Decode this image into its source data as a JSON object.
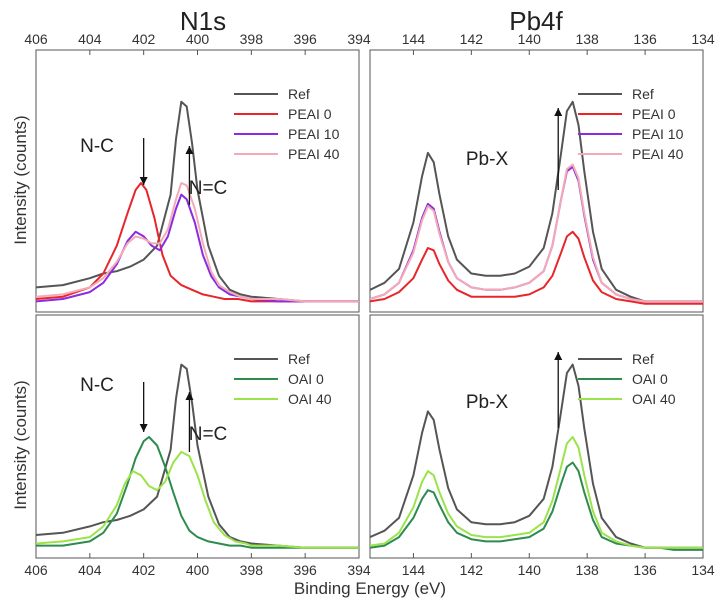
{
  "figure": {
    "column_titles": [
      "N1s",
      "Pb4f"
    ],
    "xlabel": "Binding Energy (eV)",
    "ylabel": "Intensity (counts)"
  },
  "chart_data": [
    {
      "type": "line",
      "panel": "top-left",
      "xlim": [
        406,
        394
      ],
      "x_reversed": true,
      "xticks": [
        406,
        404,
        402,
        400,
        398,
        396,
        394
      ],
      "ylim": [
        0,
        1
      ],
      "grid": false,
      "legend_position": "top-right",
      "annotations": [
        {
          "text": "N-C",
          "arrow": "down",
          "x": 402.0
        },
        {
          "text": "N=C",
          "arrow": "up",
          "x": 400.3
        }
      ],
      "series": [
        {
          "name": "Ref",
          "color": "#555555",
          "x": [
            406,
            405,
            404,
            403.5,
            403,
            402.5,
            402,
            401.5,
            401,
            400.8,
            400.6,
            400.4,
            400.2,
            400,
            399.6,
            399.2,
            398.8,
            398.4,
            398,
            397,
            396,
            395,
            394
          ],
          "y": [
            0.08,
            0.09,
            0.12,
            0.14,
            0.15,
            0.17,
            0.2,
            0.26,
            0.48,
            0.72,
            0.88,
            0.86,
            0.7,
            0.5,
            0.26,
            0.13,
            0.07,
            0.05,
            0.04,
            0.03,
            0.02,
            0.02,
            0.02
          ]
        },
        {
          "name": "PEAI 0",
          "color": "#e8262a",
          "x": [
            406,
            405,
            404,
            403.5,
            403,
            402.6,
            402.3,
            402.1,
            401.9,
            401.6,
            401.3,
            401,
            400.6,
            400.2,
            399.8,
            399.4,
            399,
            398.5,
            398,
            397,
            396,
            395,
            394
          ],
          "y": [
            0.03,
            0.04,
            0.08,
            0.14,
            0.26,
            0.4,
            0.5,
            0.53,
            0.5,
            0.38,
            0.22,
            0.13,
            0.09,
            0.07,
            0.05,
            0.04,
            0.03,
            0.03,
            0.02,
            0.02,
            0.02,
            0.02,
            0.02
          ]
        },
        {
          "name": "PEAI 10",
          "color": "#8a2be2",
          "x": [
            406,
            405,
            404,
            403.5,
            403,
            402.6,
            402.3,
            402,
            401.7,
            401.4,
            401.1,
            400.8,
            400.6,
            400.4,
            400.1,
            399.8,
            399.5,
            399.2,
            398.8,
            398.4,
            398,
            397,
            396,
            395,
            394
          ],
          "y": [
            0.02,
            0.03,
            0.06,
            0.1,
            0.18,
            0.28,
            0.32,
            0.3,
            0.26,
            0.24,
            0.3,
            0.42,
            0.48,
            0.46,
            0.36,
            0.22,
            0.13,
            0.08,
            0.05,
            0.04,
            0.03,
            0.02,
            0.02,
            0.02,
            0.02
          ]
        },
        {
          "name": "PEAI 40",
          "color": "#f4aab5",
          "x": [
            406,
            405,
            404,
            403.5,
            403,
            402.6,
            402.3,
            402,
            401.7,
            401.4,
            401.1,
            400.8,
            400.6,
            400.4,
            400.1,
            399.8,
            399.5,
            399.2,
            398.8,
            398.4,
            398,
            397,
            396,
            395,
            394
          ],
          "y": [
            0.04,
            0.05,
            0.08,
            0.12,
            0.19,
            0.27,
            0.3,
            0.29,
            0.27,
            0.27,
            0.33,
            0.46,
            0.53,
            0.52,
            0.42,
            0.27,
            0.15,
            0.09,
            0.06,
            0.04,
            0.03,
            0.03,
            0.02,
            0.02,
            0.02
          ]
        }
      ]
    },
    {
      "type": "line",
      "panel": "top-right",
      "xlim": [
        145.5,
        134
      ],
      "x_reversed": true,
      "xticks": [
        144,
        142,
        140,
        138,
        136,
        134
      ],
      "ylim": [
        0,
        1
      ],
      "grid": false,
      "legend_position": "top-right",
      "annotations": [
        {
          "text": "Pb-X",
          "arrow": "up",
          "x": 139.0
        }
      ],
      "series": [
        {
          "name": "Ref",
          "color": "#555555",
          "x": [
            145.5,
            145,
            144.5,
            144,
            143.7,
            143.5,
            143.3,
            143.1,
            142.8,
            142.5,
            142,
            141.5,
            141,
            140.5,
            140,
            139.5,
            139.2,
            138.9,
            138.7,
            138.5,
            138.3,
            138.1,
            137.8,
            137.5,
            137,
            136.5,
            136,
            135.5,
            135,
            134.5,
            134
          ],
          "y": [
            0.07,
            0.1,
            0.16,
            0.36,
            0.56,
            0.66,
            0.62,
            0.48,
            0.3,
            0.2,
            0.14,
            0.13,
            0.13,
            0.14,
            0.17,
            0.25,
            0.4,
            0.66,
            0.84,
            0.88,
            0.78,
            0.58,
            0.32,
            0.16,
            0.07,
            0.04,
            0.02,
            0.02,
            0.02,
            0.02,
            0.02
          ]
        },
        {
          "name": "PEAI 0",
          "color": "#e8262a",
          "x": [
            145.5,
            145,
            144.5,
            144,
            143.7,
            143.5,
            143.3,
            143.1,
            142.8,
            142.5,
            142,
            141.5,
            141,
            140.5,
            140,
            139.5,
            139.2,
            138.9,
            138.7,
            138.5,
            138.3,
            138.1,
            137.8,
            137.5,
            137,
            136.5,
            136,
            135.5,
            135,
            134.5,
            134
          ],
          "y": [
            0.02,
            0.03,
            0.06,
            0.12,
            0.2,
            0.25,
            0.24,
            0.18,
            0.11,
            0.07,
            0.04,
            0.04,
            0.04,
            0.04,
            0.05,
            0.08,
            0.13,
            0.23,
            0.3,
            0.32,
            0.29,
            0.21,
            0.11,
            0.06,
            0.03,
            0.02,
            0.01,
            0.01,
            0.01,
            0.01,
            0.01
          ]
        },
        {
          "name": "PEAI 10",
          "color": "#8a2be2",
          "x": [
            145.5,
            145,
            144.5,
            144,
            143.7,
            143.5,
            143.3,
            143.1,
            142.8,
            142.5,
            142,
            141.5,
            141,
            140.5,
            140,
            139.5,
            139.2,
            138.9,
            138.7,
            138.5,
            138.3,
            138.1,
            137.8,
            137.5,
            137,
            136.5,
            136,
            135.5,
            135,
            134.5,
            134
          ],
          "y": [
            0.03,
            0.05,
            0.1,
            0.24,
            0.38,
            0.44,
            0.42,
            0.32,
            0.19,
            0.12,
            0.08,
            0.07,
            0.07,
            0.08,
            0.1,
            0.15,
            0.26,
            0.46,
            0.58,
            0.6,
            0.54,
            0.39,
            0.2,
            0.1,
            0.05,
            0.03,
            0.02,
            0.02,
            0.02,
            0.02,
            0.02
          ]
        },
        {
          "name": "PEAI 40",
          "color": "#f4aab5",
          "x": [
            145.5,
            145,
            144.5,
            144,
            143.7,
            143.5,
            143.3,
            143.1,
            142.8,
            142.5,
            142,
            141.5,
            141,
            140.5,
            140,
            139.5,
            139.2,
            138.9,
            138.7,
            138.5,
            138.3,
            138.1,
            137.8,
            137.5,
            137,
            136.5,
            136,
            135.5,
            135,
            134.5,
            134
          ],
          "y": [
            0.03,
            0.05,
            0.1,
            0.23,
            0.37,
            0.43,
            0.41,
            0.31,
            0.19,
            0.12,
            0.08,
            0.07,
            0.07,
            0.08,
            0.1,
            0.15,
            0.26,
            0.46,
            0.59,
            0.61,
            0.55,
            0.4,
            0.21,
            0.1,
            0.05,
            0.03,
            0.02,
            0.02,
            0.02,
            0.02,
            0.02
          ]
        }
      ]
    },
    {
      "type": "line",
      "panel": "bottom-left",
      "xlim": [
        406,
        394
      ],
      "x_reversed": true,
      "xticks": [
        406,
        404,
        402,
        400,
        398,
        396,
        394
      ],
      "ylim": [
        0,
        1
      ],
      "grid": false,
      "legend_position": "top-right",
      "annotations": [
        {
          "text": "N-C",
          "arrow": "down",
          "x": 402.0
        },
        {
          "text": "N=C",
          "arrow": "up",
          "x": 400.3
        }
      ],
      "series": [
        {
          "name": "Ref",
          "color": "#555555",
          "x": [
            406,
            405,
            404,
            403.5,
            403,
            402.5,
            402,
            401.5,
            401,
            400.8,
            400.6,
            400.4,
            400.2,
            400,
            399.6,
            399.2,
            398.8,
            398.4,
            398,
            397,
            396,
            395,
            394
          ],
          "y": [
            0.08,
            0.09,
            0.12,
            0.14,
            0.15,
            0.17,
            0.2,
            0.26,
            0.48,
            0.72,
            0.88,
            0.86,
            0.7,
            0.5,
            0.26,
            0.13,
            0.07,
            0.05,
            0.04,
            0.03,
            0.02,
            0.02,
            0.02
          ]
        },
        {
          "name": "OAI 0",
          "color": "#2e8b4e",
          "x": [
            406,
            405,
            404,
            403.5,
            403,
            402.6,
            402.3,
            402,
            401.8,
            401.5,
            401.2,
            400.9,
            400.6,
            400.3,
            400,
            399.6,
            399.2,
            398.8,
            398.4,
            398,
            397,
            396,
            395,
            394
          ],
          "y": [
            0.03,
            0.03,
            0.05,
            0.09,
            0.18,
            0.32,
            0.44,
            0.52,
            0.54,
            0.5,
            0.4,
            0.28,
            0.17,
            0.1,
            0.07,
            0.05,
            0.04,
            0.03,
            0.03,
            0.02,
            0.02,
            0.02,
            0.02,
            0.02
          ]
        },
        {
          "name": "OAI 40",
          "color": "#9be34a",
          "x": [
            406,
            405,
            404,
            403.5,
            403,
            402.7,
            402.4,
            402.1,
            401.8,
            401.5,
            401.2,
            400.9,
            400.6,
            400.3,
            400,
            399.7,
            399.4,
            399,
            398.6,
            398.2,
            398,
            397,
            396,
            395,
            394
          ],
          "y": [
            0.04,
            0.05,
            0.07,
            0.12,
            0.22,
            0.32,
            0.38,
            0.36,
            0.31,
            0.29,
            0.33,
            0.42,
            0.47,
            0.45,
            0.36,
            0.24,
            0.14,
            0.08,
            0.05,
            0.04,
            0.03,
            0.03,
            0.02,
            0.02,
            0.02
          ]
        }
      ]
    },
    {
      "type": "line",
      "panel": "bottom-right",
      "xlim": [
        145.5,
        134
      ],
      "x_reversed": true,
      "xticks": [
        144,
        142,
        140,
        138,
        136,
        134
      ],
      "ylim": [
        0,
        1
      ],
      "grid": false,
      "legend_position": "top-right",
      "annotations": [
        {
          "text": "Pb-X",
          "arrow": "up",
          "x": 139.0
        }
      ],
      "series": [
        {
          "name": "Ref",
          "color": "#555555",
          "x": [
            145.5,
            145,
            144.5,
            144,
            143.7,
            143.5,
            143.3,
            143.1,
            142.8,
            142.5,
            142,
            141.5,
            141,
            140.5,
            140,
            139.5,
            139.2,
            138.9,
            138.7,
            138.5,
            138.3,
            138.1,
            137.8,
            137.5,
            137,
            136.5,
            136,
            135.5,
            135,
            134.5,
            134
          ],
          "y": [
            0.07,
            0.1,
            0.16,
            0.36,
            0.56,
            0.66,
            0.62,
            0.48,
            0.3,
            0.2,
            0.14,
            0.13,
            0.13,
            0.14,
            0.17,
            0.25,
            0.4,
            0.66,
            0.84,
            0.88,
            0.78,
            0.58,
            0.32,
            0.16,
            0.07,
            0.04,
            0.02,
            0.02,
            0.02,
            0.02,
            0.02
          ]
        },
        {
          "name": "OAI 0",
          "color": "#2e8b4e",
          "x": [
            145.5,
            145,
            144.5,
            144,
            143.7,
            143.5,
            143.3,
            143.1,
            142.8,
            142.5,
            142,
            141.5,
            141,
            140.5,
            140,
            139.5,
            139.2,
            138.9,
            138.7,
            138.5,
            138.3,
            138.1,
            137.8,
            137.5,
            137,
            136.5,
            136,
            135.5,
            135,
            134.5,
            134
          ],
          "y": [
            0.02,
            0.03,
            0.07,
            0.16,
            0.25,
            0.29,
            0.28,
            0.22,
            0.14,
            0.09,
            0.06,
            0.05,
            0.05,
            0.06,
            0.07,
            0.11,
            0.19,
            0.32,
            0.4,
            0.42,
            0.38,
            0.28,
            0.15,
            0.07,
            0.04,
            0.03,
            0.02,
            0.02,
            0.01,
            0.01,
            0.01
          ]
        },
        {
          "name": "OAI 40",
          "color": "#9be34a",
          "x": [
            145.5,
            145,
            144.5,
            144,
            143.7,
            143.5,
            143.3,
            143.1,
            142.8,
            142.5,
            142,
            141.5,
            141,
            140.5,
            140,
            139.5,
            139.2,
            138.9,
            138.7,
            138.5,
            138.3,
            138.1,
            137.8,
            137.5,
            137,
            136.5,
            136,
            135.5,
            135,
            134.5,
            134
          ],
          "y": [
            0.03,
            0.04,
            0.09,
            0.21,
            0.33,
            0.38,
            0.36,
            0.28,
            0.18,
            0.12,
            0.08,
            0.07,
            0.07,
            0.08,
            0.09,
            0.14,
            0.24,
            0.4,
            0.51,
            0.54,
            0.49,
            0.36,
            0.19,
            0.09,
            0.05,
            0.03,
            0.02,
            0.02,
            0.02,
            0.02,
            0.02
          ]
        }
      ]
    }
  ]
}
